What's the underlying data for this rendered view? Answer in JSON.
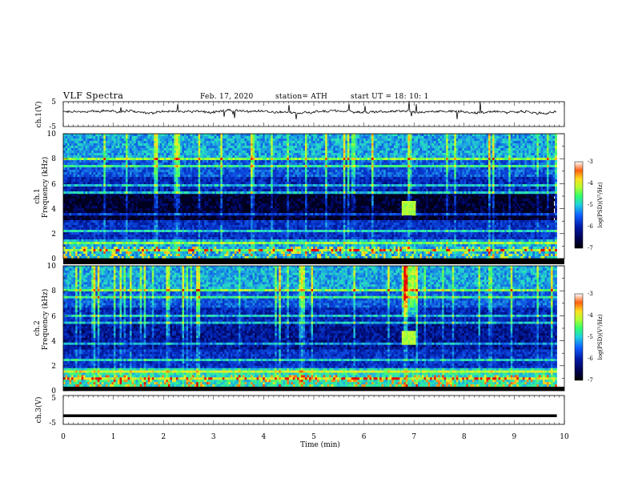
{
  "header": {
    "title": "VLF  Spectra",
    "date": "Feb. 17, 2020",
    "station": "station= ATH",
    "start": "start  UT  =    18: 10: 1"
  },
  "colors": {
    "background": "#000020",
    "colormap": [
      "#000000",
      "#00004a",
      "#001aa8",
      "#0b4fe0",
      "#1ea0e0",
      "#20e0c0",
      "#40ff60",
      "#c0ff30",
      "#ffe020",
      "#ff8010",
      "#e00000"
    ]
  },
  "chart_data": [
    {
      "type": "line",
      "name": "ch1-waveform",
      "ylabel": "ch.1(V)",
      "yticks": [
        "5",
        "-5"
      ],
      "ylim": [
        -5,
        5
      ],
      "xlim": [
        0,
        10
      ],
      "baseline_v": 0.9
    },
    {
      "type": "heatmap",
      "name": "ch1-spectrogram",
      "ylabel": "ch.1",
      "ylabel2": "Frequency  (kHz)",
      "yticks": [
        "0",
        "2",
        "4",
        "6",
        "8",
        "10"
      ],
      "ylim": [
        0,
        10
      ],
      "xlim": [
        0,
        9.85
      ],
      "burst_minutes": [
        6.75,
        7.05
      ],
      "colorbar_label": "log(PSD)(V²/Hz)",
      "colorbar_ticks": [
        "-3",
        "-4",
        "-5",
        "-6",
        "-7"
      ],
      "colorbar_range": [
        -7,
        -3
      ]
    },
    {
      "type": "heatmap",
      "name": "ch2-spectrogram",
      "ylabel": "ch.2",
      "ylabel2": "Frequency  (kHz)",
      "yticks": [
        "0",
        "2",
        "4",
        "6",
        "8",
        "10"
      ],
      "ylim": [
        0,
        10
      ],
      "xlim": [
        0,
        9.85
      ],
      "burst_minutes": [
        6.75,
        7.05
      ],
      "colorbar_label": "log(PSD)(V²/Hz)",
      "colorbar_ticks": [
        "-3",
        "-4",
        "-5",
        "-6",
        "-7"
      ],
      "colorbar_range": [
        -7,
        -3
      ]
    },
    {
      "type": "line",
      "name": "ch3-waveform",
      "ylabel": "ch.3(V)",
      "yticks": [
        "5",
        "-5"
      ],
      "ylim": [
        -5,
        5
      ],
      "xlim": [
        0,
        10
      ],
      "baseline_v": -2.0,
      "xlabel": "Time  (min)",
      "xticks": [
        "0",
        "1",
        "2",
        "3",
        "4",
        "5",
        "6",
        "7",
        "8",
        "9",
        "10"
      ]
    }
  ]
}
